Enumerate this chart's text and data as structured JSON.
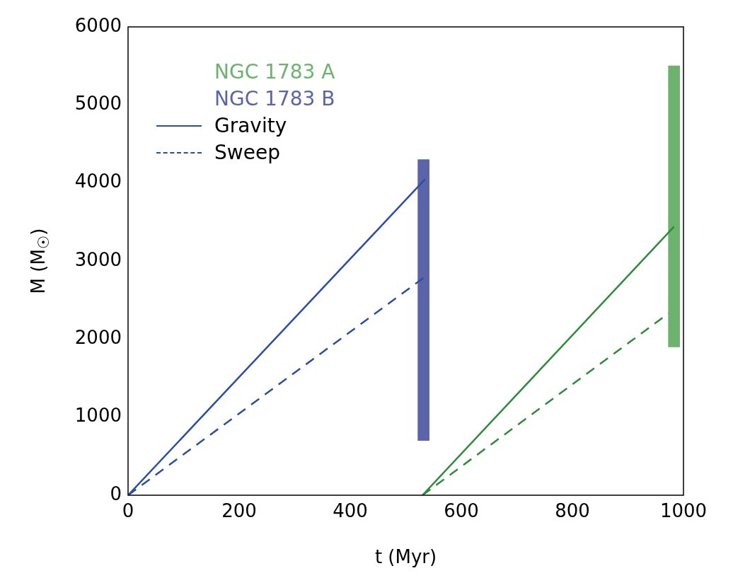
{
  "chart_data": {
    "type": "line",
    "xlabel": "t (Myr)",
    "ylabel": "M (M$_{☉}$)",
    "xlim": [
      0,
      1000
    ],
    "xticks": [
      0,
      200,
      400,
      600,
      800,
      1000
    ],
    "ylim": [
      0,
      6000
    ],
    "yticks": [
      0,
      1000,
      2000,
      3000,
      4000,
      5000,
      6000
    ],
    "grid": false,
    "legend": "top left",
    "marker": "none",
    "series": [
      {
        "name": "NGC 1783 A",
        "type": "bar",
        "color": "#6db36f",
        "x": [
          983
        ],
        "base": [
          1900
        ],
        "values": [
          3600
        ]
      },
      {
        "name": "NGC 1783 B",
        "type": "bar",
        "color": "#5b64a8",
        "x": [
          532
        ],
        "base": [
          700
        ],
        "values": [
          3600
        ]
      },
      {
        "name": "Gravity",
        "color": "#2b4ea2",
        "line_style": "solid",
        "x": [
          0,
          535
        ],
        "values": [
          0,
          4050
        ]
      },
      {
        "name": "Sweep",
        "color": "#2b4ea2",
        "line_style": "dashed",
        "x": [
          0,
          535
        ],
        "values": [
          0,
          2800
        ]
      },
      {
        "color": "#2e8b3a",
        "line_style": "solid",
        "x": [
          530,
          983
        ],
        "values": [
          0,
          3440
        ]
      },
      {
        "color": "#2e8b3a",
        "line_style": "dashed",
        "x": [
          530,
          973
        ],
        "values": [
          0,
          2330
        ]
      }
    ]
  }
}
